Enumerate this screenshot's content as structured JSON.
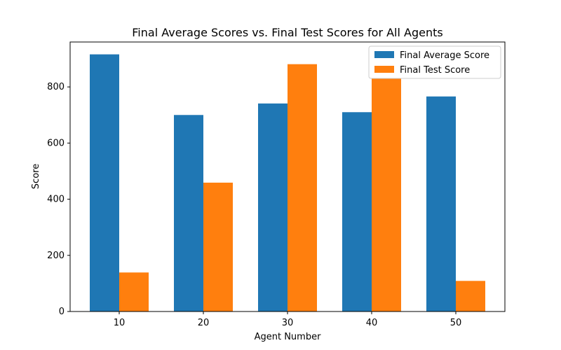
{
  "chart_data": {
    "type": "bar",
    "title": "Final Average Scores vs. Final Test Scores for All Agents",
    "xlabel": "Agent Number",
    "ylabel": "Score",
    "categories": [
      "10",
      "20",
      "30",
      "40",
      "50"
    ],
    "series": [
      {
        "name": "Final Average Score",
        "color": "#1f77b4",
        "values": [
          916,
          700,
          741,
          710,
          766
        ]
      },
      {
        "name": "Final Test Score",
        "color": "#ff7f0e",
        "values": [
          139,
          459,
          881,
          830,
          109
        ]
      }
    ],
    "yticks": [
      0,
      200,
      400,
      600,
      800
    ],
    "ylim": [
      0,
      960
    ],
    "grid": false,
    "legend_position": "top-right"
  }
}
